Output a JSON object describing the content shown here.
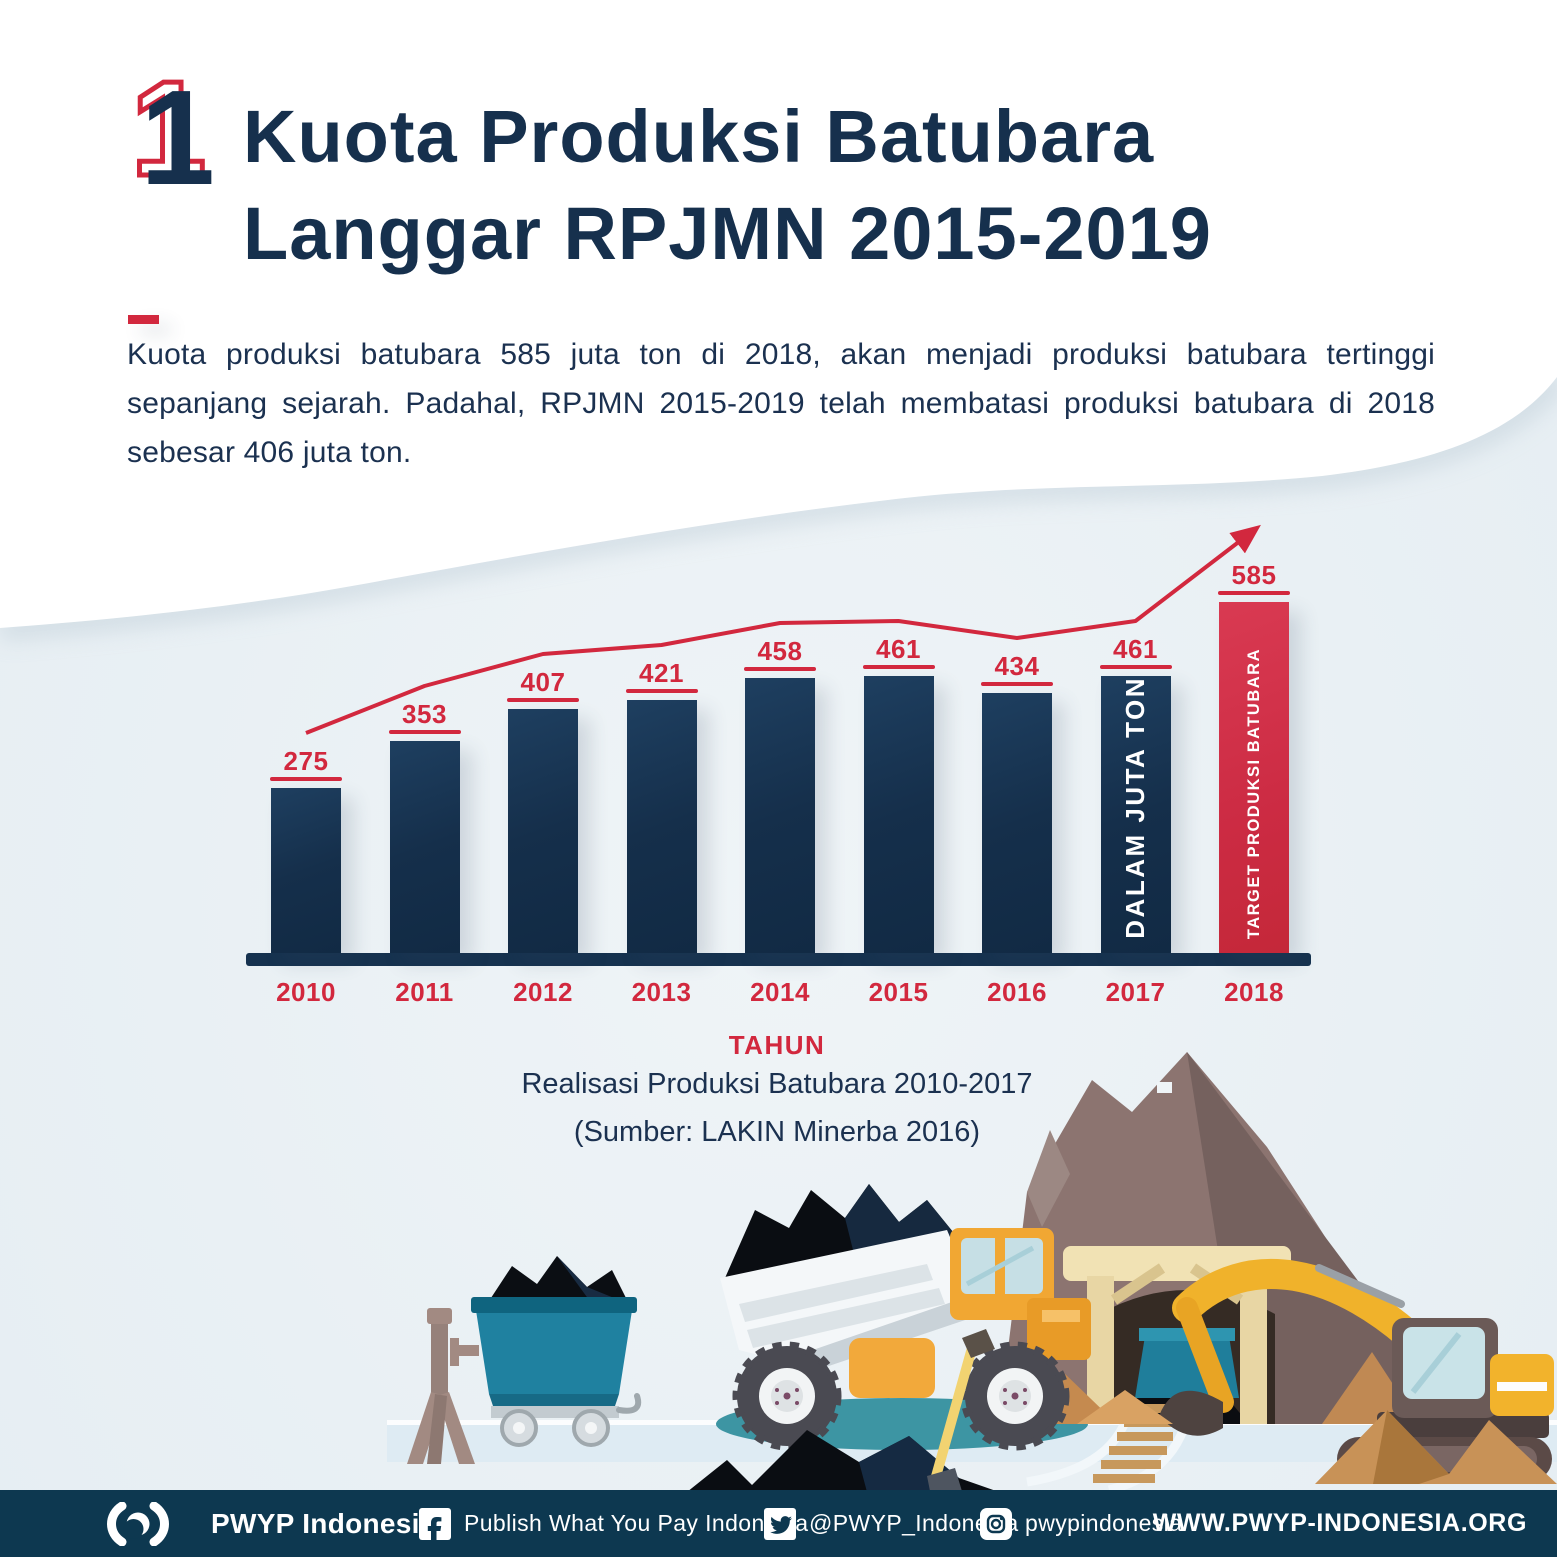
{
  "header": {
    "number": "1",
    "title_line1": "Kuota Produksi Batubara",
    "title_line2": "Langgar RPJMN 2015-2019"
  },
  "intro": {
    "paragraph": "Kuota produksi batubara 585 juta ton di 2018, akan menjadi produksi batubara tertinggi sepanjang sejarah. Padahal, RPJMN 2015-2019 telah membatasi produksi batubara di 2018 sebesar 406 juta ton."
  },
  "chart_data": {
    "type": "bar",
    "categories": [
      "2010",
      "2011",
      "2012",
      "2013",
      "2014",
      "2015",
      "2016",
      "2017",
      "2018"
    ],
    "values": [
      275,
      353,
      407,
      421,
      458,
      461,
      434,
      461,
      585
    ],
    "xlabel": "TAHUN",
    "title": "Realisasi Produksi Batubara 2010-2017",
    "source": "(Sumber: LAKIN Minerba 2016)",
    "unit_label": "DALAM JUTA TON",
    "unit_label_index": 7,
    "target_label": "TARGET PRODUKSI BATUBARA",
    "highlight_index": 8,
    "ylim": [
      0,
      650
    ],
    "grid": false,
    "legend": false,
    "trend_line": {
      "present": true,
      "ends_with_arrow": true
    },
    "bar_color": "#152F4B",
    "highlight_color": "#CC2B43",
    "label_color": "#D2283E"
  },
  "footer": {
    "brand": "PWYP Indonesia",
    "facebook_label": "Publish What You Pay Indonesia",
    "twitter_label": "@PWYP_Indonesia",
    "instagram_label": "pwypindonesia",
    "website": "WWW.PWYP-INDONESIA.ORG"
  },
  "colors": {
    "navy": "#16304D",
    "red_accent": "#D2283E",
    "background": "#E9F0F4",
    "footer_bg": "#0D3850",
    "white": "#FFFFFF"
  }
}
